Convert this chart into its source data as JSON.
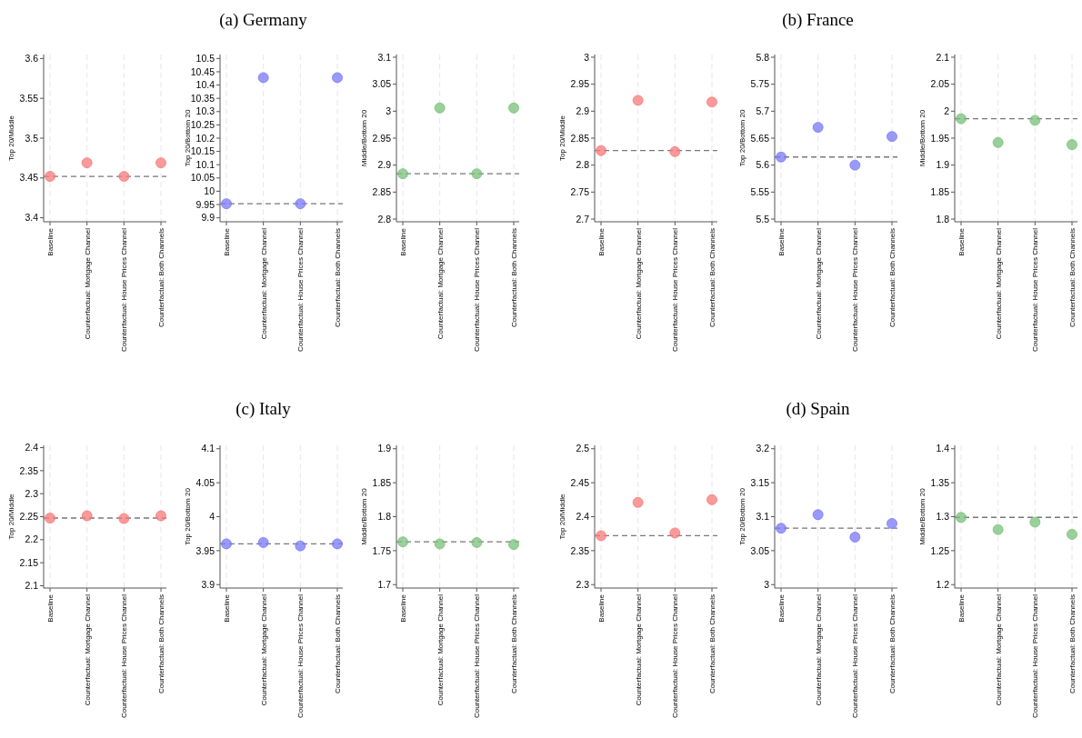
{
  "chart_data": [
    {
      "type": "scatter",
      "ylabel": "Top 20/Middle",
      "categories": [
        "Baseline",
        "Counterfactual: Mortgage Channel",
        "Counterfactual: House Prices Channel",
        "Counterfactual: Both Channels"
      ],
      "series": [
        {
          "color": "#f87878",
          "values": [
            3.452,
            3.469,
            3.452,
            3.469
          ]
        }
      ],
      "ylim": [
        3.395,
        3.605
      ],
      "yticks": [
        3.4,
        3.45,
        3.5,
        3.55,
        3.6
      ],
      "ref_lines": [
        {
          "axis": "y",
          "value": 3.452,
          "color": "#777777",
          "line_style": "dashed"
        }
      ],
      "grid": "x",
      "marker": "circle"
    },
    {
      "type": "scatter",
      "title": "(a) Germany",
      "ylabel": "Top 20/Bottom 20",
      "categories": [
        "Baseline",
        "Counterfactual: Mortgage Channel",
        "Counterfactual: House Prices Channel",
        "Counterfactual: Both Channels"
      ],
      "series": [
        {
          "color": "#7878f8",
          "values": [
            9.953,
            10.428,
            9.953,
            10.428
          ]
        }
      ],
      "ylim": [
        9.885,
        10.515
      ],
      "yticks": [
        9.9,
        9.95,
        10,
        10.05,
        10.1,
        10.15,
        10.2,
        10.25,
        10.3,
        10.35,
        10.4,
        10.45,
        10.5
      ],
      "ref_lines": [
        {
          "axis": "y",
          "value": 9.953,
          "color": "#777777",
          "line_style": "dashed"
        }
      ],
      "grid": "x",
      "marker": "circle"
    },
    {
      "type": "scatter",
      "ylabel": "Middle/Bottom 20",
      "categories": [
        "Baseline",
        "Counterfactual: Mortgage Channel",
        "Counterfactual: House Prices Channel",
        "Counterfactual: Both Channels"
      ],
      "series": [
        {
          "color": "#78c078",
          "values": [
            2.884,
            3.006,
            2.884,
            3.006
          ]
        }
      ],
      "ylim": [
        2.795,
        3.105
      ],
      "yticks": [
        2.8,
        2.85,
        2.9,
        2.95,
        3,
        3.05,
        3.1
      ],
      "ref_lines": [
        {
          "axis": "y",
          "value": 2.884,
          "color": "#777777",
          "line_style": "dashed"
        }
      ],
      "grid": "x",
      "marker": "circle"
    },
    {
      "type": "scatter",
      "ylabel": "Top 20/Middle",
      "categories": [
        "Baseline",
        "Counterfactual: Mortgage Channel",
        "Counterfactual: House Prices Channel",
        "Counterfactual: Both Channels"
      ],
      "series": [
        {
          "color": "#f87878",
          "values": [
            2.827,
            2.92,
            2.825,
            2.917
          ]
        }
      ],
      "ylim": [
        2.695,
        3.005
      ],
      "yticks": [
        2.7,
        2.75,
        2.8,
        2.85,
        2.9,
        2.95,
        3
      ],
      "ref_lines": [
        {
          "axis": "y",
          "value": 2.827,
          "color": "#777777",
          "line_style": "dashed"
        }
      ],
      "grid": "x",
      "marker": "circle"
    },
    {
      "type": "scatter",
      "title": "(b) France",
      "ylabel": "Top 20/Bottom 20",
      "categories": [
        "Baseline",
        "Counterfactual: Mortgage Channel",
        "Counterfactual: House Prices Channel",
        "Counterfactual: Both Channels"
      ],
      "series": [
        {
          "color": "#7878f8",
          "values": [
            5.615,
            5.67,
            5.6,
            5.653
          ]
        }
      ],
      "ylim": [
        5.495,
        5.805
      ],
      "yticks": [
        5.5,
        5.55,
        5.6,
        5.65,
        5.7,
        5.75,
        5.8
      ],
      "ref_lines": [
        {
          "axis": "y",
          "value": 5.615,
          "color": "#777777",
          "line_style": "dashed"
        }
      ],
      "grid": "x",
      "marker": "circle"
    },
    {
      "type": "scatter",
      "ylabel": "Middle/Bottom 20",
      "categories": [
        "Baseline",
        "Counterfactual: Mortgage Channel",
        "Counterfactual: House Prices Channel",
        "Counterfactual: Both Channels"
      ],
      "series": [
        {
          "color": "#78c078",
          "values": [
            1.986,
            1.942,
            1.983,
            1.938
          ]
        }
      ],
      "ylim": [
        1.795,
        2.105
      ],
      "yticks": [
        1.8,
        1.85,
        1.9,
        1.95,
        2,
        2.05,
        2.1
      ],
      "ref_lines": [
        {
          "axis": "y",
          "value": 1.986,
          "color": "#777777",
          "line_style": "dashed"
        }
      ],
      "grid": "x",
      "marker": "circle"
    },
    {
      "type": "scatter",
      "ylabel": "Top 20/Middle",
      "categories": [
        "Baseline",
        "Counterfactual: Mortgage Channel",
        "Counterfactual: House Prices Channel",
        "Counterfactual: Both Channels"
      ],
      "series": [
        {
          "color": "#f87878",
          "values": [
            2.247,
            2.252,
            2.246,
            2.252
          ]
        }
      ],
      "ylim": [
        2.095,
        2.405
      ],
      "yticks": [
        2.1,
        2.15,
        2.2,
        2.25,
        2.3,
        2.35,
        2.4
      ],
      "ref_lines": [
        {
          "axis": "y",
          "value": 2.247,
          "color": "#777777",
          "line_style": "dashed"
        }
      ],
      "grid": "x",
      "marker": "circle"
    },
    {
      "type": "scatter",
      "title": "(c) Italy",
      "ylabel": "Top 20/Bottom 20",
      "categories": [
        "Baseline",
        "Counterfactual: Mortgage Channel",
        "Counterfactual: House Prices Channel",
        "Counterfactual: Both Channels"
      ],
      "series": [
        {
          "color": "#7878f8",
          "values": [
            3.96,
            3.962,
            3.957,
            3.96
          ]
        }
      ],
      "ylim": [
        3.895,
        4.105
      ],
      "yticks": [
        3.9,
        3.95,
        4,
        4.05,
        4.1
      ],
      "ref_lines": [
        {
          "axis": "y",
          "value": 3.96,
          "color": "#777777",
          "line_style": "dashed"
        }
      ],
      "grid": "x",
      "marker": "circle"
    },
    {
      "type": "scatter",
      "ylabel": "Middle/Bottom 20",
      "categories": [
        "Baseline",
        "Counterfactual: Mortgage Channel",
        "Counterfactual: House Prices Channel",
        "Counterfactual: Both Channels"
      ],
      "series": [
        {
          "color": "#78c078",
          "values": [
            1.763,
            1.76,
            1.762,
            1.759
          ]
        }
      ],
      "ylim": [
        1.695,
        1.905
      ],
      "yticks": [
        1.7,
        1.75,
        1.8,
        1.85,
        1.9
      ],
      "ref_lines": [
        {
          "axis": "y",
          "value": 1.763,
          "color": "#777777",
          "line_style": "dashed"
        }
      ],
      "grid": "x",
      "marker": "circle"
    },
    {
      "type": "scatter",
      "ylabel": "Top 20/Middle",
      "categories": [
        "Baseline",
        "Counterfactual: Mortgage Channel",
        "Counterfactual: House Prices Channel",
        "Counterfactual: Both Channels"
      ],
      "series": [
        {
          "color": "#f87878",
          "values": [
            2.372,
            2.421,
            2.376,
            2.425
          ]
        }
      ],
      "ylim": [
        2.295,
        2.505
      ],
      "yticks": [
        2.3,
        2.35,
        2.4,
        2.45,
        2.5
      ],
      "ref_lines": [
        {
          "axis": "y",
          "value": 2.372,
          "color": "#777777",
          "line_style": "dashed"
        }
      ],
      "grid": "x",
      "marker": "circle"
    },
    {
      "type": "scatter",
      "title": "(d) Spain",
      "ylabel": "Top 20/Bottom 20",
      "categories": [
        "Baseline",
        "Counterfactual: Mortgage Channel",
        "Counterfactual: House Prices Channel",
        "Counterfactual: Both Channels"
      ],
      "series": [
        {
          "color": "#7878f8",
          "values": [
            3.083,
            3.103,
            3.07,
            3.09
          ]
        }
      ],
      "ylim": [
        2.995,
        3.205
      ],
      "yticks": [
        3,
        3.05,
        3.1,
        3.15,
        3.2
      ],
      "ref_lines": [
        {
          "axis": "y",
          "value": 3.083,
          "color": "#777777",
          "line_style": "dashed"
        }
      ],
      "grid": "x",
      "marker": "circle"
    },
    {
      "type": "scatter",
      "ylabel": "Middle/Bottom 20",
      "categories": [
        "Baseline",
        "Counterfactual: Mortgage Channel",
        "Counterfactual: House Prices Channel",
        "Counterfactual: Both Channels"
      ],
      "series": [
        {
          "color": "#78c078",
          "values": [
            1.299,
            1.281,
            1.292,
            1.274
          ]
        }
      ],
      "ylim": [
        1.195,
        1.405
      ],
      "yticks": [
        1.2,
        1.25,
        1.3,
        1.35,
        1.4
      ],
      "ref_lines": [
        {
          "axis": "y",
          "value": 1.299,
          "color": "#777777",
          "line_style": "dashed"
        }
      ],
      "grid": "x",
      "marker": "circle"
    }
  ]
}
